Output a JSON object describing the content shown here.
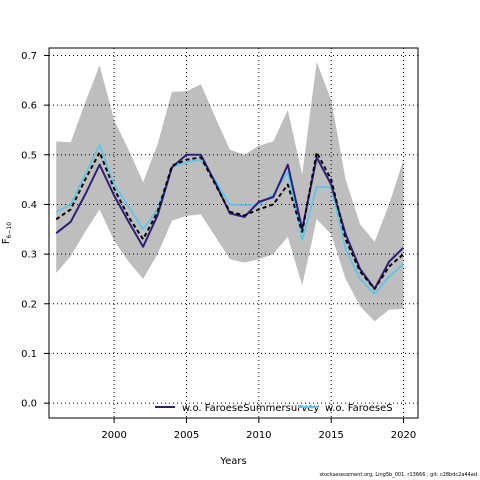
{
  "chart_data": {
    "type": "line",
    "xlabel": "Years",
    "ylabel": "F",
    "ylabel_sub": "6−10",
    "xlim": [
      1995.5,
      2021
    ],
    "ylim": [
      -0.03,
      0.715
    ],
    "x_ticks": [
      2000,
      2005,
      2010,
      2015,
      2020
    ],
    "x_tick_labels": [
      "2000",
      "2005",
      "2010",
      "2015",
      "2020"
    ],
    "y_ticks": [
      0.0,
      0.1,
      0.2,
      0.3,
      0.4,
      0.5,
      0.6,
      0.7
    ],
    "y_tick_labels": [
      "0.0",
      "0.1",
      "0.2",
      "0.3",
      "0.4",
      "0.5",
      "0.6",
      "0.7"
    ],
    "grid": true,
    "x": [
      1996,
      1997,
      1998,
      1999,
      2000,
      2001,
      2002,
      2003,
      2004,
      2005,
      2006,
      2007,
      2008,
      2009,
      2010,
      2011,
      2012,
      2013,
      2014,
      2015,
      2016,
      2017,
      2018,
      2019,
      2020
    ],
    "band": {
      "color": "#bebebe",
      "upper": [
        0.527,
        0.525,
        0.605,
        0.68,
        0.57,
        0.51,
        0.445,
        0.52,
        0.627,
        0.628,
        0.642,
        0.575,
        0.51,
        0.5,
        0.518,
        0.527,
        0.59,
        0.46,
        0.687,
        0.61,
        0.45,
        0.36,
        0.325,
        0.4,
        0.49
      ],
      "lower": [
        0.262,
        0.296,
        0.345,
        0.39,
        0.327,
        0.285,
        0.25,
        0.3,
        0.367,
        0.377,
        0.38,
        0.335,
        0.29,
        0.283,
        0.29,
        0.3,
        0.335,
        0.237,
        0.37,
        0.34,
        0.25,
        0.195,
        0.165,
        0.188,
        0.19
      ]
    },
    "series": [
      {
        "color": "#000000",
        "dashed": true,
        "values": [
          0.37,
          0.39,
          0.45,
          0.505,
          0.432,
          0.375,
          0.33,
          0.385,
          0.478,
          0.49,
          0.495,
          0.44,
          0.385,
          0.378,
          0.39,
          0.4,
          0.44,
          0.345,
          0.505,
          0.45,
          0.33,
          0.265,
          0.23,
          0.275,
          0.3
        ]
      },
      {
        "name": "w.o. FaroeseSummersurvey",
        "color": "#2d1e78",
        "dashed": false,
        "values": [
          0.342,
          0.365,
          0.42,
          0.48,
          0.418,
          0.365,
          0.315,
          0.378,
          0.475,
          0.5,
          0.5,
          0.443,
          0.382,
          0.375,
          0.405,
          0.415,
          0.48,
          0.35,
          0.495,
          0.44,
          0.34,
          0.27,
          0.23,
          0.285,
          0.313
        ]
      },
      {
        "name": "w.o. FaroeseS",
        "color": "#4ec8f0",
        "dashed": false,
        "values": [
          0.385,
          0.4,
          0.46,
          0.52,
          0.44,
          0.395,
          0.35,
          0.39,
          0.475,
          0.485,
          0.49,
          0.448,
          0.4,
          0.398,
          0.4,
          0.42,
          0.465,
          0.328,
          0.435,
          0.435,
          0.31,
          0.25,
          0.22,
          0.255,
          0.28
        ]
      }
    ]
  },
  "footer_text": "stockassessment.org, Ling5b_001, r13666 , git: c28bdc2a44ad"
}
